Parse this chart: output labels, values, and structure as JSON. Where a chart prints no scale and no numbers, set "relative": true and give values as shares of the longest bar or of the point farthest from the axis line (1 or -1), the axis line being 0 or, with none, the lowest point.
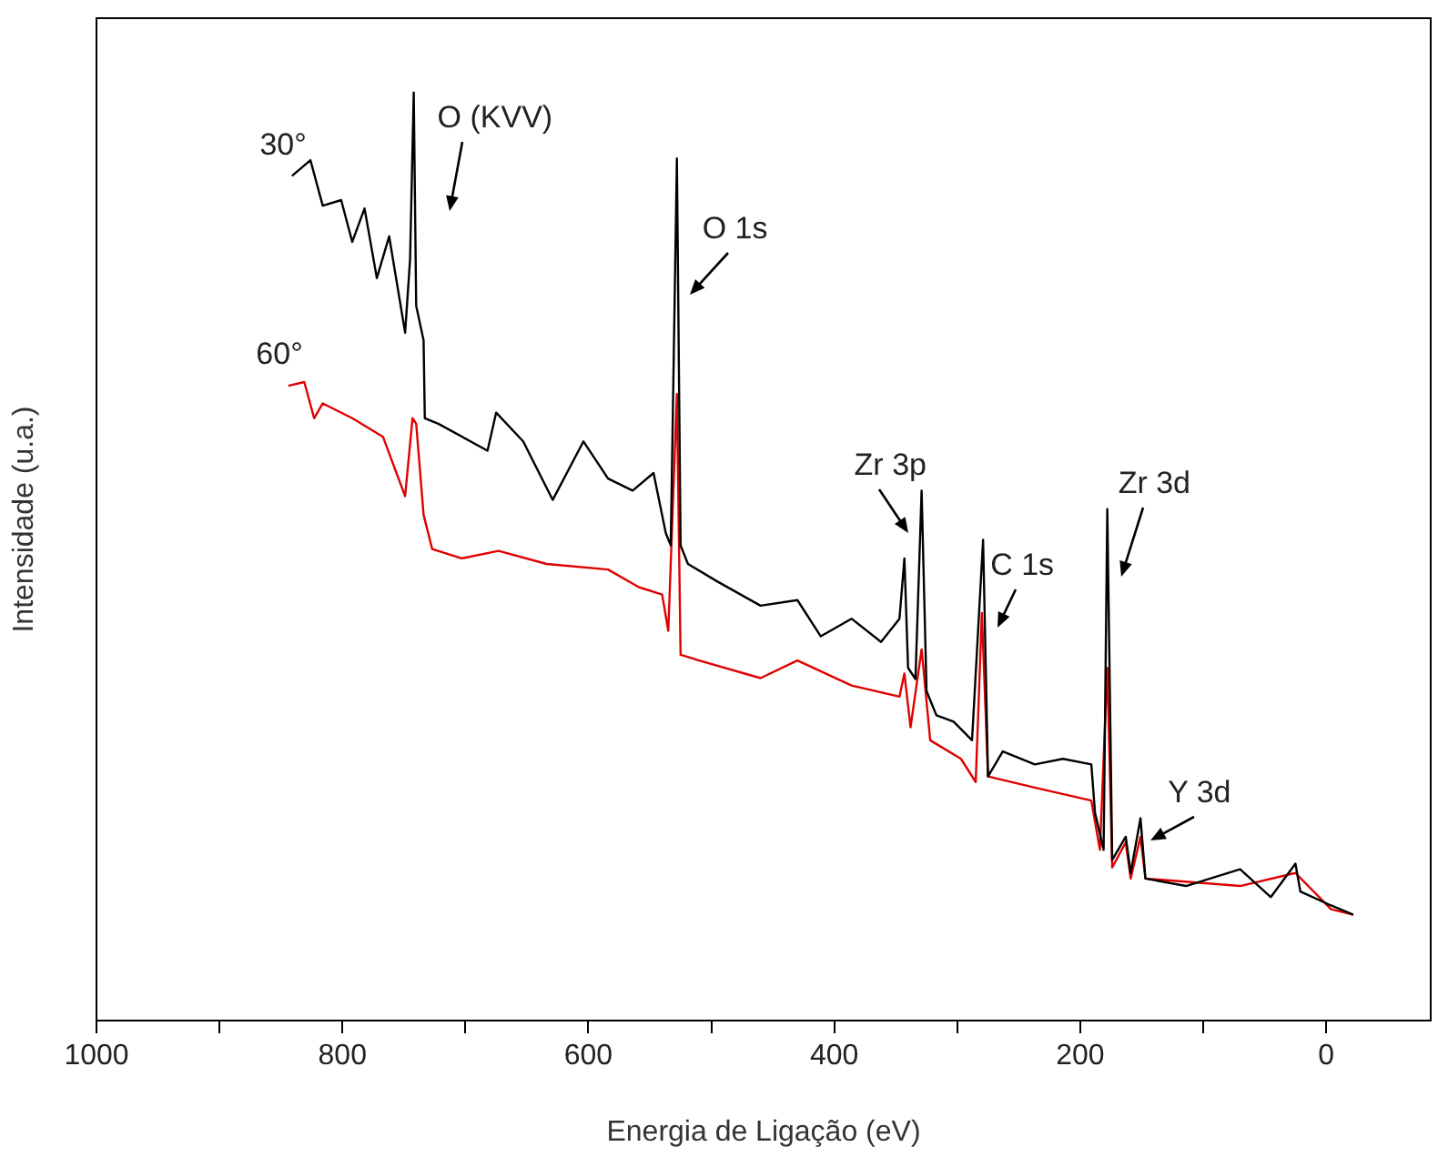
{
  "chart_data": {
    "type": "line",
    "relative": true,
    "xlabel": "Energia de Ligação (eV)",
    "ylabel": "Intensidade (u.a.)",
    "xlim": [
      1000,
      -85
    ],
    "xticks": [
      1000,
      {
        "value": 900,
        "label": null
      },
      800,
      {
        "value": 700,
        "label": null
      },
      600,
      {
        "value": 500,
        "label": null
      },
      400,
      {
        "value": 300,
        "label": null
      },
      200,
      {
        "value": 100,
        "label": null
      },
      0
    ],
    "grid": false,
    "legend": false,
    "marker": "none",
    "line_style": "solid",
    "series": [
      {
        "name": "30°",
        "color": "#000000",
        "x": [
          841,
          826,
          816,
          801,
          792,
          782,
          772,
          762,
          749,
          745,
          742,
          740,
          734,
          733,
          722,
          682,
          675,
          653,
          629,
          604,
          584,
          564,
          547,
          537,
          533,
          528,
          525,
          519,
          495,
          460,
          430,
          411,
          386,
          362,
          347,
          343,
          340,
          334,
          329,
          325,
          317,
          303,
          288,
          279,
          275,
          263,
          237,
          214,
          191,
          188,
          181,
          178,
          174,
          163,
          159,
          151,
          147,
          114,
          70,
          45,
          25,
          21,
          -4,
          -22
        ],
        "values": [
          0.91,
          0.927,
          0.878,
          0.884,
          0.839,
          0.875,
          0.8,
          0.845,
          0.741,
          0.82,
          1,
          0.77,
          0.733,
          0.649,
          0.643,
          0.614,
          0.655,
          0.624,
          0.561,
          0.624,
          0.584,
          0.571,
          0.59,
          0.525,
          0.512,
          0.929,
          0.512,
          0.492,
          0.473,
          0.447,
          0.453,
          0.414,
          0.433,
          0.408,
          0.433,
          0.498,
          0.38,
          0.368,
          0.571,
          0.355,
          0.329,
          0.322,
          0.302,
          0.518,
          0.263,
          0.29,
          0.276,
          0.282,
          0.276,
          0.224,
          0.184,
          0.551,
          0.173,
          0.198,
          0.159,
          0.218,
          0.153,
          0.145,
          0.163,
          0.133,
          0.169,
          0.139,
          0.124,
          0.114
        ]
      },
      {
        "name": "60°",
        "color": "#e00000",
        "x": [
          844,
          831,
          823,
          816,
          792,
          767,
          760,
          749,
          743,
          740,
          734,
          727,
          703,
          673,
          634,
          584,
          559,
          540,
          535,
          528,
          525,
          510,
          460,
          430,
          386,
          347,
          343,
          338,
          329,
          322,
          297,
          285,
          280,
          275,
          237,
          191,
          184,
          178,
          174,
          163,
          159,
          151,
          147,
          70,
          25,
          -4,
          -22
        ],
        "values": [
          0.684,
          0.688,
          0.649,
          0.665,
          0.649,
          0.629,
          0.604,
          0.565,
          0.649,
          0.643,
          0.545,
          0.508,
          0.498,
          0.506,
          0.492,
          0.486,
          0.467,
          0.459,
          0.42,
          0.675,
          0.394,
          0.388,
          0.369,
          0.388,
          0.361,
          0.349,
          0.374,
          0.316,
          0.4,
          0.302,
          0.282,
          0.257,
          0.439,
          0.263,
          0.251,
          0.237,
          0.184,
          0.38,
          0.165,
          0.192,
          0.153,
          0.198,
          0.153,
          0.145,
          0.159,
          0.12,
          0.114
        ]
      }
    ],
    "annotations": [
      {
        "text": "O (KVV)",
        "x": 742,
        "y": 1
      },
      {
        "text": "O 1s",
        "x": 528,
        "y": 0.929
      },
      {
        "text": "Zr 3p",
        "x": 329,
        "y": 0.571
      },
      {
        "text": "C 1s",
        "x": 279,
        "y": 0.518
      },
      {
        "text": "Zr 3d",
        "x": 178,
        "y": 0.551
      },
      {
        "text": "Y 3d",
        "x": 151,
        "y": 0.218
      }
    ]
  }
}
